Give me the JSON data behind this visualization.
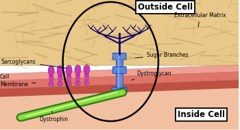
{
  "fig_width": 3.5,
  "fig_height": 1.9,
  "dpi": 100,
  "bg_color": "#f5f5f0",
  "ecm_color_main": "#d4a96a",
  "ecm_color_light": "#e8c98a",
  "ecm_fiber_color": "#b8945a",
  "membrane_pink": "#f0a090",
  "membrane_red": "#e07060",
  "membrane_dark_red": "#c05040",
  "inside_color": "#f0c0a0",
  "sarc_color": "#cc33bb",
  "sarc_edge": "#882288",
  "protein_blue": "#5588dd",
  "protein_dark": "#2244aa",
  "protein_mid": "#4477cc",
  "branch_color": "#110066",
  "dystrophin_green": "#88dd44",
  "dystrophin_dark": "#226611",
  "dystrophin_mid": "#55aa22",
  "dystrophin_highlight": "#ccff88",
  "label_fs": 5.5,
  "title_fs": 8.5,
  "outside_cell_text": "Outside Cell",
  "inside_cell_text": "Inside Cell",
  "ecm_text": "Extracellular Matrix",
  "sarc_text": "Sarcoglycans",
  "membrane_text": "Cell\nMembrane",
  "sugar_text": "Sugar Branches",
  "dystroglycan_text": "Dystroglycan",
  "dystrophin_text": "Dystrophin"
}
